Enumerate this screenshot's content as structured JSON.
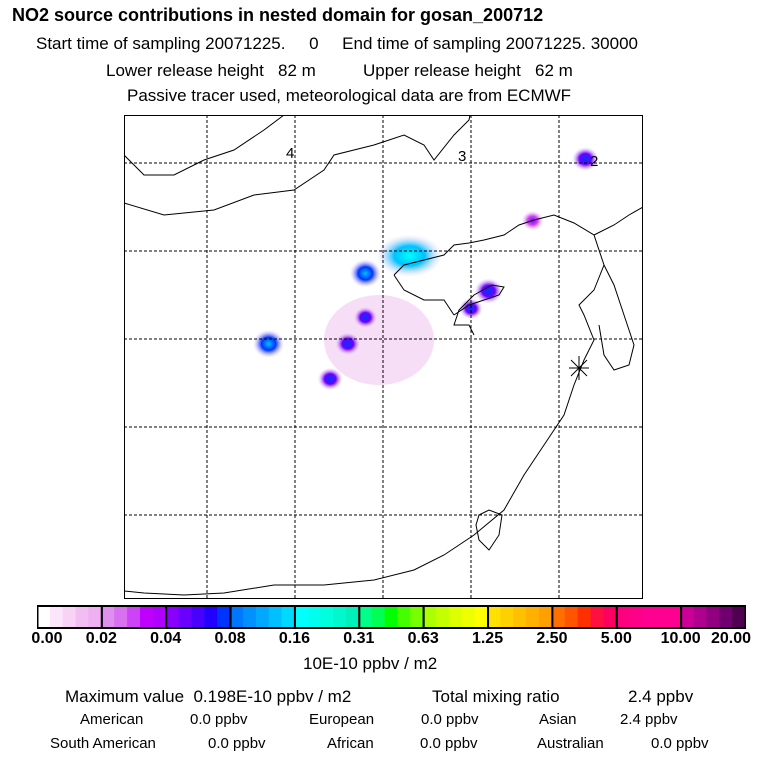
{
  "header": {
    "title": "NO2 source contributions in nested domain for gosan_200712",
    "line1": "Start time of sampling 20071225.     0     End time of sampling 20071225. 30000",
    "line2": "Lower release height   82 m          Upper release height   62 m",
    "line3": "Passive tracer used, meteorological data are from ECMWF"
  },
  "chart_data": {
    "type": "heatmap",
    "title": "NO2 source contributions in nested domain for gosan_200712",
    "map_labels": [
      "4",
      "3",
      "2"
    ],
    "colorbar": {
      "ticks": [
        "0.00",
        "0.02",
        "0.04",
        "0.08",
        "0.16",
        "0.31",
        "0.63",
        "1.25",
        "2.50",
        "5.00",
        "10.00",
        "20.00"
      ],
      "colors": [
        [
          "#ffffff",
          "#fde6fb",
          "#f8d3f6",
          "#f2bdf2",
          "#eeb0f0"
        ],
        [
          "#e08ef0",
          "#d870f0",
          "#cc44f5",
          "#c000ff",
          "#b000ff"
        ],
        [
          "#8a00ff",
          "#6a00ff",
          "#4a00ff",
          "#2200ff",
          "#0033ff"
        ],
        [
          "#0077ff",
          "#0090ff",
          "#00a8ff",
          "#00c0ff",
          "#00d8ff"
        ],
        [
          "#00ffff",
          "#00ffee",
          "#00ffdd",
          "#00f8cc",
          "#00f0bb"
        ],
        [
          "#00ff88",
          "#00ff55",
          "#00ff00",
          "#44ff00",
          "#77ff00"
        ],
        [
          "#aaff00",
          "#c4ff00",
          "#ddff00",
          "#eeff00",
          "#ffff00"
        ],
        [
          "#ffe000",
          "#ffd000",
          "#ffc000",
          "#ffb000",
          "#ffa000"
        ],
        [
          "#ff7000",
          "#ff5500",
          "#ff3000",
          "#ff1040",
          "#ff0060"
        ],
        [
          "#ff0080",
          "#ff0088",
          "#ff0090",
          "#ff0090",
          "#ff0090"
        ],
        [
          "#cc0099",
          "#b00090",
          "#900080",
          "#700070",
          "#500050"
        ]
      ],
      "unit": "10E-10 ppbv / m2"
    },
    "plumes": [
      {
        "lon_idx": 3.3,
        "lat_idx": 1.6,
        "level": 0.2
      },
      {
        "lon_idx": 2.8,
        "lat_idx": 1.8,
        "level": 0.1
      },
      {
        "lon_idx": 2.8,
        "lat_idx": 2.3,
        "level": 0.05
      },
      {
        "lon_idx": 2.6,
        "lat_idx": 2.6,
        "level": 0.06
      },
      {
        "lon_idx": 1.7,
        "lat_idx": 2.6,
        "level": 0.1
      },
      {
        "lon_idx": 2.4,
        "lat_idx": 3.0,
        "level": 0.06
      },
      {
        "lon_idx": 4.2,
        "lat_idx": 2.0,
        "level": 0.08
      },
      {
        "lon_idx": 4.0,
        "lat_idx": 2.2,
        "level": 0.05
      },
      {
        "lon_idx": 5.3,
        "lat_idx": 0.5,
        "level": 0.07
      },
      {
        "lon_idx": 4.7,
        "lat_idx": 1.2,
        "level": 0.04
      }
    ]
  },
  "footer": {
    "max": "Maximum value  0.198E-10 ppbv / m2",
    "total_label": "Total mixing ratio",
    "total_value": "2.4 ppbv",
    "american": "American",
    "american_v": "0.0 ppbv",
    "european": "European",
    "european_v": "0.0 ppbv",
    "asian": "Asian",
    "asian_v": "2.4 ppbv",
    "south_american": "South American",
    "south_american_v": "0.0 ppbv",
    "african": "African",
    "african_v": "0.0 ppbv",
    "australian": "Australian",
    "australian_v": "0.0 ppbv"
  }
}
